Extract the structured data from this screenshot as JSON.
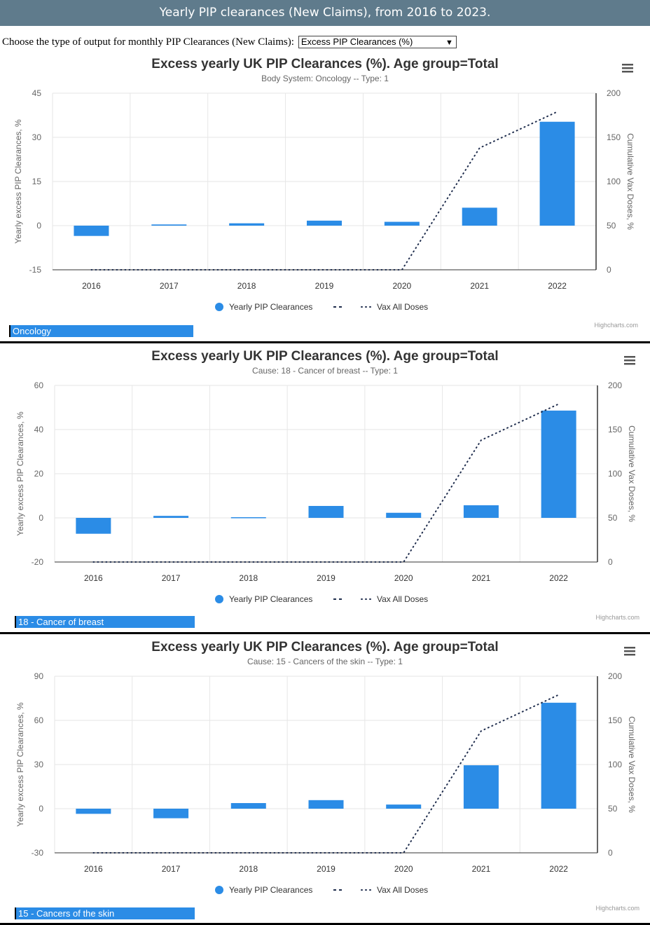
{
  "header": {
    "title": "Yearly PIP clearances (New Claims), from 2016 to 2023."
  },
  "selector": {
    "label": "Choose the type of output for monthly PIP Clearances (New Claims):",
    "value": "Excess PIP Clearances (%)"
  },
  "colors": {
    "bar": "#2b8ce6",
    "vax": "#1f2d4d",
    "header_bg": "#5f7b8c"
  },
  "chart_data": [
    {
      "type": "bar",
      "title": "Excess yearly UK PIP Clearances (%). Age group=Total",
      "subtitle": "Body System: Oncology -- Type: 1",
      "ylabel": "Yearly excess PIP Clearances, %",
      "y2label": "Cumulative Vax Doses, %",
      "categories": [
        "2016",
        "2017",
        "2018",
        "2019",
        "2020",
        "2021",
        "2022"
      ],
      "ylim": [
        -15,
        45
      ],
      "yticks": [
        -15,
        0,
        15,
        30,
        45
      ],
      "y2lim": [
        0,
        200
      ],
      "y2ticks": [
        0,
        50,
        100,
        150,
        200
      ],
      "series": [
        {
          "name": "Yearly PIP Clearances",
          "type": "bar",
          "values": [
            -3.5,
            0.4,
            0.8,
            1.7,
            1.3,
            6.1,
            35.3
          ]
        },
        {
          "name": "Vax All Doses",
          "type": "line-dotted",
          "values": [
            0,
            0,
            0,
            0,
            0,
            138,
            179
          ]
        }
      ],
      "legend": "bottom-center",
      "credit": "Highcharts.com",
      "tag": "Oncology"
    },
    {
      "type": "bar",
      "title": "Excess yearly UK PIP Clearances (%). Age group=Total",
      "subtitle": "Cause: 18 - Cancer of breast -- Type: 1",
      "ylabel": "Yearly excess PIP Clearances, %",
      "y2label": "Cumulative Vax Doses, %",
      "categories": [
        "2016",
        "2017",
        "2018",
        "2019",
        "2020",
        "2021",
        "2022"
      ],
      "ylim": [
        -20,
        60
      ],
      "yticks": [
        -20,
        0,
        20,
        40,
        60
      ],
      "y2lim": [
        0,
        200
      ],
      "y2ticks": [
        0,
        50,
        100,
        150,
        200
      ],
      "series": [
        {
          "name": "Yearly PIP Clearances",
          "type": "bar",
          "values": [
            -7.2,
            0.9,
            0.3,
            5.4,
            2.3,
            5.7,
            48.6
          ]
        },
        {
          "name": "Vax All Doses",
          "type": "line-dotted",
          "values": [
            0,
            0,
            0,
            0,
            0,
            138,
            179
          ]
        }
      ],
      "legend": "bottom-center",
      "credit": "Highcharts.com",
      "tag": "18 - Cancer of breast"
    },
    {
      "type": "bar",
      "title": "Excess yearly UK PIP Clearances (%). Age group=Total",
      "subtitle": "Cause: 15 - Cancers of the skin -- Type: 1",
      "ylabel": "Yearly excess PIP Clearances, %",
      "y2label": "Cumulative Vax Doses, %",
      "categories": [
        "2016",
        "2017",
        "2018",
        "2019",
        "2020",
        "2021",
        "2022"
      ],
      "ylim": [
        -30,
        90
      ],
      "yticks": [
        -30,
        0,
        30,
        60,
        90
      ],
      "y2lim": [
        0,
        200
      ],
      "y2ticks": [
        0,
        50,
        100,
        150,
        200
      ],
      "series": [
        {
          "name": "Yearly PIP Clearances",
          "type": "bar",
          "values": [
            -3.5,
            -6.5,
            3.8,
            5.8,
            2.8,
            29.5,
            72
          ]
        },
        {
          "name": "Vax All Doses",
          "type": "line-dotted",
          "values": [
            0,
            0,
            0,
            0,
            0,
            138,
            179
          ]
        }
      ],
      "legend": "bottom-center",
      "credit": "Highcharts.com",
      "tag": "15 - Cancers of the skin"
    }
  ]
}
